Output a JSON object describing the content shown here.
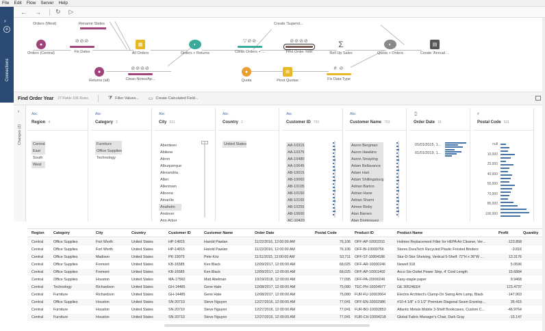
{
  "menu": [
    "File",
    "Edit",
    "Flow",
    "Server",
    "Help"
  ],
  "toolbar": {
    "back": "←",
    "forward": "→",
    "refresh": "↻",
    "run": "▷"
  },
  "rail": {
    "label": "Connections"
  },
  "flow": {
    "nodes": [
      {
        "id": "orders-central",
        "label": "Orders (Central)",
        "color": "#a0447a",
        "kind": "circle"
      },
      {
        "id": "fix-dates",
        "label": "Fix Dates",
        "color": "#a0447a",
        "kind": "clean",
        "glyph": "⊘⊘⊘"
      },
      {
        "id": "all-orders",
        "label": "All Orders",
        "color": "#e8b824",
        "kind": "union"
      },
      {
        "id": "orders-returns",
        "label": "Orders + Returns",
        "color": "#3aaa9a",
        "kind": "join"
      },
      {
        "id": "clean-orders",
        "label": "Clean Orders + ...",
        "color": "#3aaa9a",
        "kind": "clean",
        "glyph": "▽⊘⊘"
      },
      {
        "id": "find-order-year",
        "label": "Find Order Year",
        "color": "#7a5a54",
        "kind": "clean",
        "glyph": "⊘⊘⊘⊘"
      },
      {
        "id": "roll-up-sales",
        "label": "Roll Up Sales",
        "color": "#555",
        "kind": "agg"
      },
      {
        "id": "quota-orders",
        "label": "Quota + Orders",
        "color": "#777",
        "kind": "join"
      },
      {
        "id": "create-annual",
        "label": "Create 'Annual ...",
        "color": "#555",
        "kind": "output"
      },
      {
        "id": "returns-all",
        "label": "Returns (all)",
        "color": "#a0447a",
        "kind": "circle"
      },
      {
        "id": "clean-notes",
        "label": "Clean Notes/Ap...",
        "color": "#a0447a",
        "kind": "clean",
        "glyph": "⊘⊘⊘⊘"
      },
      {
        "id": "quota",
        "label": "Quota",
        "color": "#e8a032",
        "kind": "circle"
      },
      {
        "id": "pivot-quotas",
        "label": "Pivot Quotas",
        "color": "#e8b824",
        "kind": "pivot"
      },
      {
        "id": "fix-data-type",
        "label": "Fix Data Type",
        "color": "#e8b824",
        "kind": "clean",
        "glyph": "# ⊘"
      }
    ],
    "top_labels": {
      "orders-west": "Orders (West)",
      "rename-states": "Rename States",
      "create-superstore": "Create 'Superst..."
    }
  },
  "profile": {
    "title": "Find Order Year",
    "meta": "27 Fields  10K Rows",
    "filter_label": "Filter Values...",
    "calc_label": "Create Calculated Field..."
  },
  "changes_label": "Changes (2)",
  "cards": [
    {
      "type": "Abc",
      "name": "Region",
      "count": "4",
      "values": [
        "Central",
        "East",
        "South",
        "West"
      ],
      "hl": [
        0,
        1,
        3
      ]
    },
    {
      "type": "Abc",
      "name": "Category",
      "count": "3",
      "values": [
        "Furniture",
        "Office Supplies",
        "Technology"
      ],
      "hl": [
        0,
        1
      ]
    },
    {
      "type": "Abc",
      "name": "City",
      "count": "531",
      "values": [
        "Aberdeen",
        "Abilene",
        "Akron",
        "Albuquerque",
        "Alexandria",
        "Allen",
        "Allentown",
        "Altoona",
        "Amarillo",
        "Anaheim",
        "Andover",
        "Ann Arbor"
      ],
      "hl": [
        9
      ]
    },
    {
      "type": "Abc",
      "name": "Country",
      "count": "1",
      "values": [
        "United States"
      ],
      "hl": [
        0
      ]
    },
    {
      "type": "Abc",
      "name": "Customer ID",
      "count": "793",
      "values": [
        "AA-10315",
        "AA-10375",
        "AA-10480",
        "AA-10645",
        "AB-10015",
        "AB-10060",
        "AB-10105",
        "AB-10150",
        "AB-10165",
        "AB-10255",
        "AB-10600",
        "AC-10420"
      ],
      "hl": [
        0,
        1,
        2,
        3,
        4,
        5,
        6,
        7,
        8,
        9,
        10,
        11
      ]
    },
    {
      "type": "Abc",
      "name": "Customer Name",
      "count": "793",
      "values": [
        "Aaron Bergman",
        "Aaron Hawkins",
        "Aaron Smayling",
        "Adam Bellavance",
        "Adam Hart",
        "Adam Shillingsburg",
        "Adrian Barton",
        "Adrian Hane",
        "Adrian Shami",
        "Aimee Bixby",
        "Alan Barnes",
        "Alan Dominguez"
      ],
      "hl": [
        0,
        1,
        2,
        3,
        4,
        5,
        6,
        7,
        8,
        9,
        10,
        11
      ]
    },
    {
      "type": "⌚",
      "name": "Order Date",
      "count": "16",
      "values": [
        "01/01/2015, 1...",
        "01/01/2019, 1..."
      ],
      "hl": []
    },
    {
      "type": "#",
      "name": "Postal Code",
      "count": "631",
      "values": [
        "null",
        "10,000",
        "25,000",
        "40,000",
        "55,000",
        "70,000",
        "85,000",
        "100,000"
      ],
      "hl": []
    }
  ],
  "order_date_bars": [
    0.9,
    0.55,
    0.75,
    0.4,
    0.7,
    0.5,
    0.3
  ],
  "postal_bars": [
    0.2,
    0.3,
    0.25,
    0.5,
    0.35,
    0.2,
    0.45,
    0.3,
    0.25,
    0.4,
    0.35,
    0.3,
    0.5,
    0.4,
    0.35,
    0.3,
    0.25,
    0.45,
    0.6,
    0.9,
    1.0,
    0.7
  ],
  "grid": {
    "columns": [
      "Region",
      "Category",
      "City",
      "Country",
      "Customer ID",
      "Customer Name",
      "Order Date",
      "Postal Code",
      "Product ID",
      "Product Name",
      "Profit",
      "Quantity"
    ],
    "rows": [
      [
        "Central",
        "Office Supplies",
        "Fort Worth",
        "United States",
        "HP-14815",
        "Harold Pawlan",
        "11/22/2016, 12:00:00 AM",
        "76,106",
        "OFF-AP-10002311",
        "Holmes Replacement Filter for HEPA Air Cleaner, Ver...",
        "-123.858",
        ""
      ],
      [
        "Central",
        "Office Supplies",
        "Fort Worth",
        "United States",
        "HP-14815",
        "Harold Pawlan",
        "11/22/2016, 12:00:00 AM",
        "76,106",
        "OFF-BI-10000756",
        "Storex DuraTech Recycled Plastic Frosted Binders",
        "-3.816",
        ""
      ],
      [
        "Central",
        "Office Supplies",
        "Madison",
        "United States",
        "PK-19075",
        "Pete Kriz",
        "11/11/2015, 12:00:00 AM",
        "53,711",
        "OFF-ST-10004186",
        "Stur-D-Stor Shelving, Vertical 5-Shelf: 72\"H x 36\"W ...",
        "13.3176",
        ""
      ],
      [
        "Central",
        "Office Supplies",
        "Fremont",
        "United States",
        "KB-16585",
        "Ken Black",
        "12/09/2017, 12:00:00 AM",
        "68,025",
        "OFF-AR-10000246",
        "Newell 318",
        "5.0596",
        ""
      ],
      [
        "Central",
        "Office Supplies",
        "Fremont",
        "United States",
        "KB-16585",
        "Ken Black",
        "12/09/2017, 12:00:00 AM",
        "68,025",
        "OFF-AP-10001492",
        "Acco Six-Outlet Power Strip, 4' Cord Length",
        "15.6884",
        ""
      ],
      [
        "Central",
        "Office Supplies",
        "Houston",
        "United States",
        "MA-17560",
        "Matt Abelman",
        "10/19/2018, 12:00:00 AM",
        "77,095",
        "OFF-PA-10000249",
        "Easy-staple paper",
        "9.9468",
        ""
      ],
      [
        "Central",
        "Technology",
        "Richardson",
        "United States",
        "GH-14485",
        "Gene Hale",
        "12/08/2017, 12:00:00 AM",
        "75,080",
        "TEC-PH-10004977",
        "GE 30524EE4",
        "123.4737",
        ""
      ],
      [
        "Central",
        "Furniture",
        "Richardson",
        "United States",
        "GH-14485",
        "Gene Hale",
        "12/08/2017, 12:00:00 AM",
        "75,080",
        "FUR-FU-10003664",
        "Electrix Architect's Clamp-On Swing Arm Lamp, Black",
        "-147.963",
        ""
      ],
      [
        "Central",
        "Office Supplies",
        "Houston",
        "United States",
        "SN-20710",
        "Steve Nguyen",
        "12/27/2016, 12:00:00 AM",
        "77,041",
        "OFF-EN-10002986",
        "#10-4 1/8\" x 9 1/2\" Premium Diagonal Seam Envelop...",
        "35.415",
        ""
      ],
      [
        "Central",
        "Furniture",
        "Houston",
        "United States",
        "SN-20710",
        "Steve Nguyen",
        "12/27/2016, 12:00:00 AM",
        "77,041",
        "FUR-BO-10002853",
        "Atlantic Metals Mobile 3-Shelf Bookcases, Custom C...",
        "-46.9764",
        ""
      ],
      [
        "Central",
        "Furniture",
        "Houston",
        "United States",
        "SN-20710",
        "Steve Nguyen",
        "12/27/2016, 12:00:00 AM",
        "77,041",
        "FUR-CH-10004218",
        "Global Fabric Manager's Chair, Dark Gray",
        "-15.147",
        ""
      ]
    ]
  }
}
